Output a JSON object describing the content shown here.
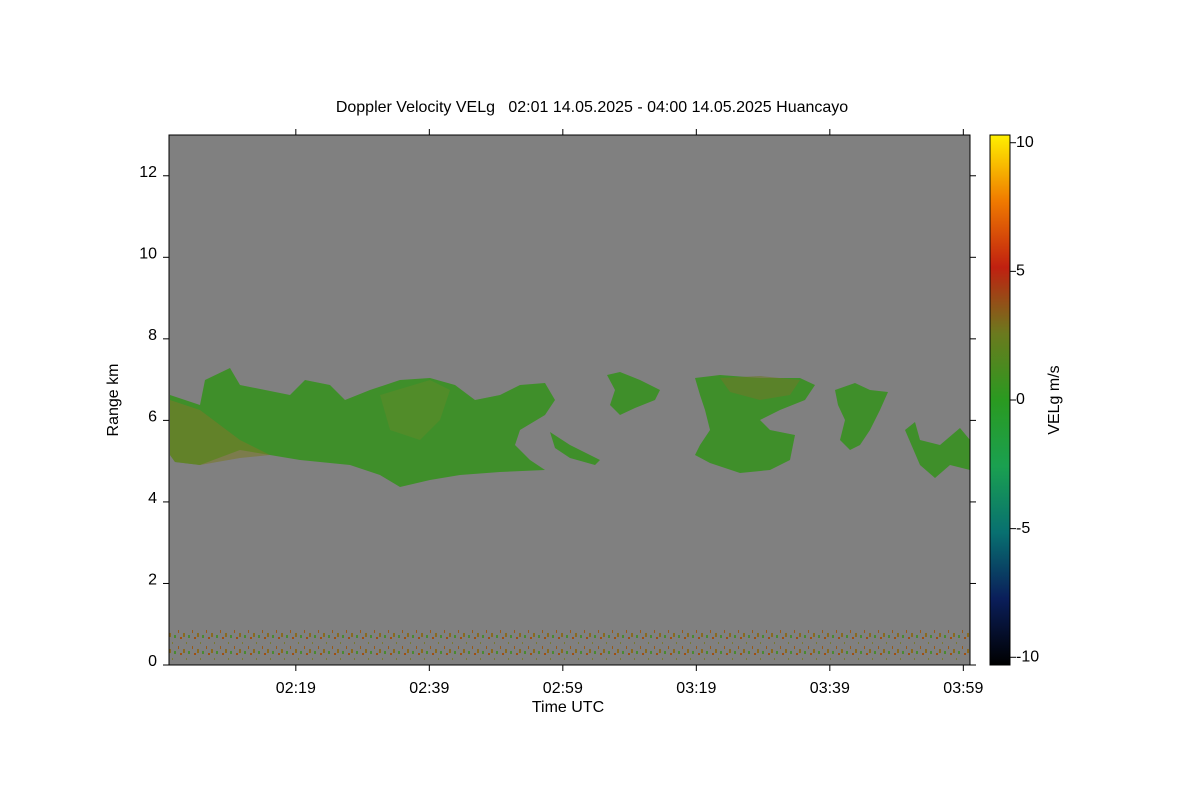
{
  "chart_data": {
    "type": "heatmap",
    "title": "Doppler Velocity VELg   02:01 14.05.2025 - 04:00 14.05.2025 Huancayo",
    "x_label": "Time UTC",
    "y_label": "Range km",
    "xlim": [
      120,
      240
    ],
    "xticks": [
      {
        "value": 139,
        "label": "02:19"
      },
      {
        "value": 159,
        "label": "02:39"
      },
      {
        "value": 179,
        "label": "02:59"
      },
      {
        "value": 199,
        "label": "03:19"
      },
      {
        "value": 219,
        "label": "03:39"
      },
      {
        "value": 239,
        "label": "03:59"
      }
    ],
    "ylim": [
      0,
      13
    ],
    "yticks": [
      0,
      2,
      4,
      6,
      8,
      10,
      12
    ],
    "background_color": "#808080",
    "colorbar": {
      "label": "VELg m/s",
      "clim": [
        -10.3,
        10.3
      ],
      "ticks": [
        -10,
        -5,
        0,
        5,
        10
      ],
      "colormap": [
        "#000000",
        "#0a1e5a",
        "#087070",
        "#1aa050",
        "#2a9a20",
        "#6b7a1e",
        "#c02010",
        "#f07a00",
        "#fff000"
      ]
    }
  }
}
